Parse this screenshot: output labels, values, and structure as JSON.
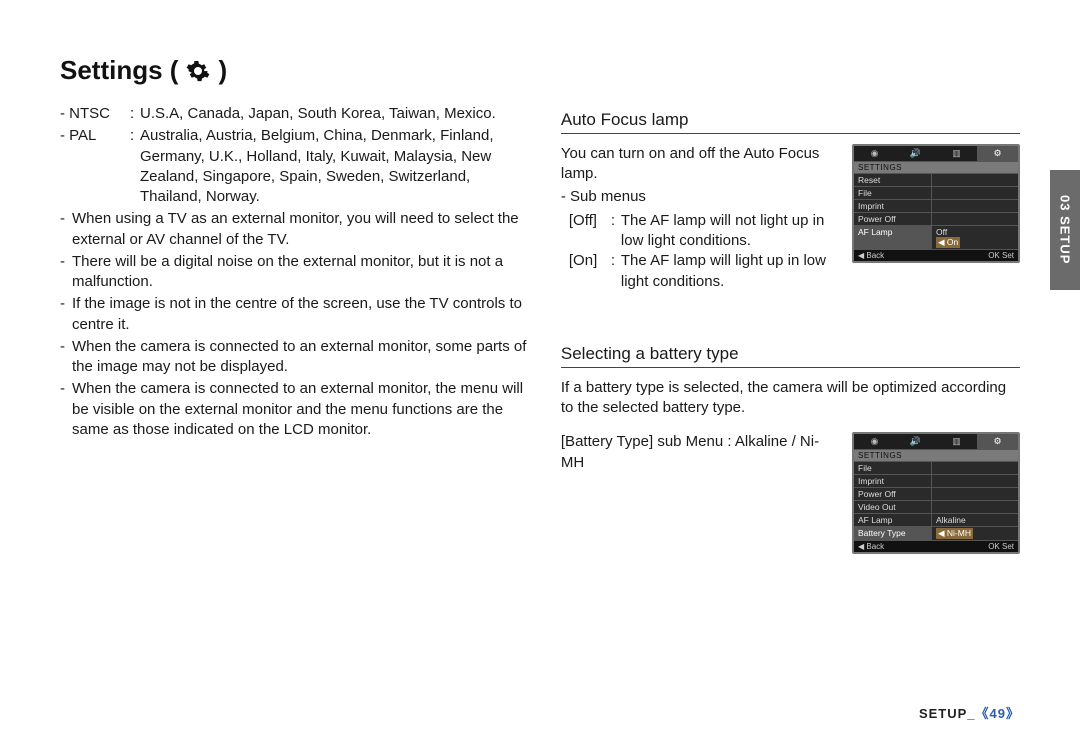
{
  "page": {
    "title": "Settings (",
    "title_close": ")",
    "footer_label": "SETUP_",
    "footer_page": "《49》",
    "side_tab": "03 SETUP"
  },
  "left": {
    "ntsc_label": "- NTSC",
    "ntsc_sep": ":",
    "ntsc_val": "U.S.A, Canada, Japan, South Korea, Taiwan, Mexico.",
    "pal_label": "- PAL",
    "pal_sep": ":",
    "pal_val": "Australia, Austria, Belgium, China, Denmark, Finland, Germany, U.K., Holland, Italy, Kuwait, Malaysia, New Zealand, Singapore, Spain, Sweden, Switzerland, Thailand, Norway.",
    "b1": "When using a TV as an external monitor, you will need to select the external or AV channel of the TV.",
    "b2": "There will be a digital noise on the external monitor, but it is not a malfunction.",
    "b3": "If the image is not in the centre of the screen, use the TV controls to centre it.",
    "b4": "When the camera is connected to an external monitor, some parts of the image may not be displayed.",
    "b5": "When the camera is connected to an external monitor, the menu will be visible on the external monitor and the menu functions are the same as those indicated on the LCD monitor."
  },
  "af": {
    "heading": "Auto Focus lamp",
    "intro": "You can turn on and off the Auto Focus lamp.",
    "sub_label": " - Sub menus",
    "off_key": "[Off]",
    "off_sep": ":",
    "off_val": "The AF lamp will not light up in low light conditions.",
    "on_key": "[On]",
    "on_sep": ":",
    "on_val": "The AF lamp will light up in low light conditions."
  },
  "bat": {
    "heading": "Selecting a battery type",
    "intro": "If a battery type is selected, the camera will be optimized according to the selected battery type.",
    "line2": "[Battery Type] sub Menu : Alkaline / Ni-MH"
  },
  "menu1": {
    "header": "SETTINGS",
    "rows": [
      {
        "l": "Reset",
        "r": ""
      },
      {
        "l": "File",
        "r": ""
      },
      {
        "l": "Imprint",
        "r": ""
      },
      {
        "l": "Power Off",
        "r": ""
      },
      {
        "l": "AF Lamp",
        "r_opts": [
          "Off",
          "On"
        ],
        "sel": true,
        "sel_opt": "On"
      }
    ],
    "foot_l": "◀  Back",
    "foot_r": "OK  Set"
  },
  "menu2": {
    "header": "SETTINGS",
    "rows": [
      {
        "l": "File",
        "r": ""
      },
      {
        "l": "Imprint",
        "r": ""
      },
      {
        "l": "Power Off",
        "r": ""
      },
      {
        "l": "Video Out",
        "r": ""
      },
      {
        "l": "AF Lamp",
        "r_opts": [
          "Alkaline"
        ],
        "plain": true
      },
      {
        "l": "Battery Type",
        "r_opts": [
          "Ni-MH"
        ],
        "sel": true,
        "sel_opt": "Ni-MH"
      }
    ],
    "foot_l": "◀  Back",
    "foot_r": "OK  Set"
  },
  "colors": {
    "text": "#1a1a1a",
    "rule": "#444444",
    "menu_bg": "#2a2a2a",
    "menu_border": "#777777",
    "menu_sel": "#555555",
    "opt_sel": "#8a6a3a",
    "side_tab": "#6b6b6b",
    "page_num": "#2a5fb0"
  }
}
